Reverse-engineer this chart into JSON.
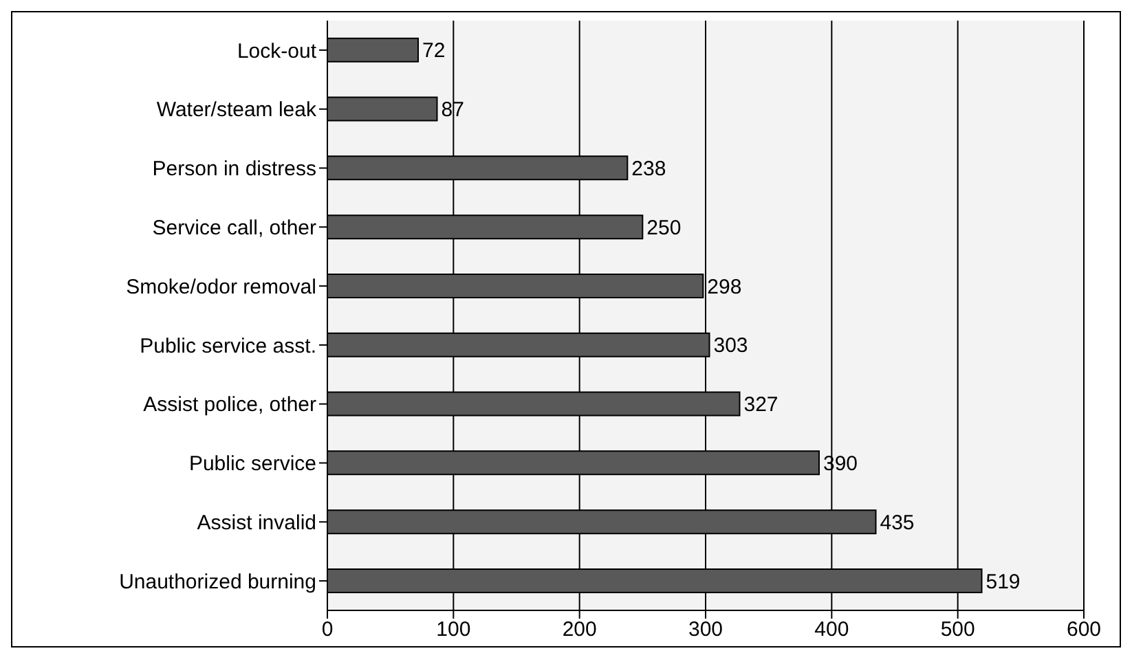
{
  "chart_data": {
    "type": "bar",
    "orientation": "horizontal",
    "categories": [
      "Lock-out",
      "Water/steam leak",
      "Person in distress",
      "Service call, other",
      "Smoke/odor removal",
      "Public service asst.",
      "Assist police, other",
      "Public service",
      "Assist invalid",
      "Unauthorized burning"
    ],
    "values": [
      72,
      87,
      238,
      250,
      298,
      303,
      327,
      390,
      435,
      519
    ],
    "color": "#595959",
    "xlim": [
      0,
      600
    ],
    "xticks": [
      0,
      100,
      200,
      300,
      400,
      500,
      600
    ],
    "grid": "x",
    "data_labels": true
  }
}
